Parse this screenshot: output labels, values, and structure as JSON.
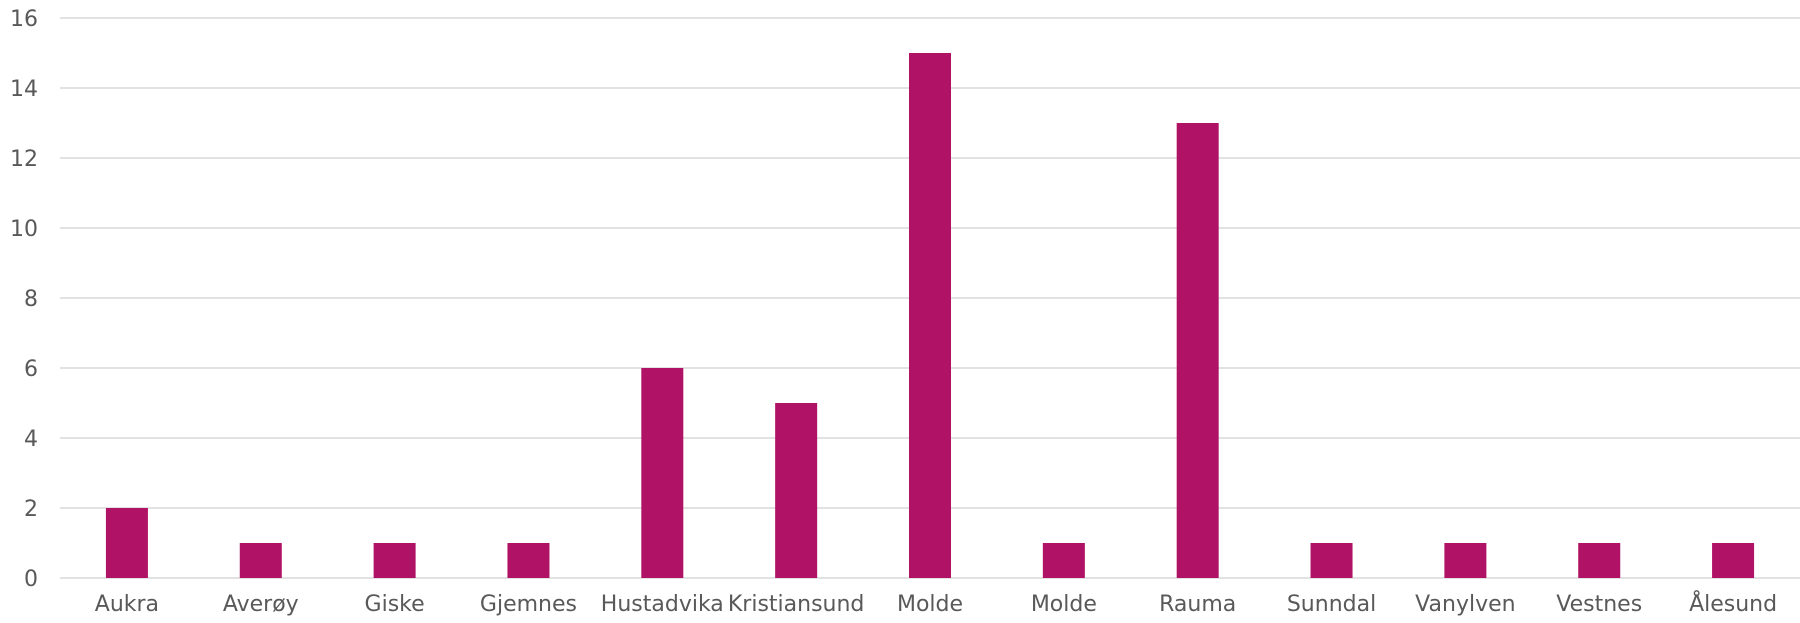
{
  "chart_data": {
    "type": "bar",
    "title": "",
    "xlabel": "",
    "ylabel": "",
    "categories": [
      "Aukra",
      "Averøy",
      "Giske",
      "Gjemnes",
      "Hustadvika",
      "Kristiansund",
      "Molde",
      "Molde",
      "Rauma",
      "Sunndal",
      "Vanylven",
      "Vestnes",
      "Ålesund"
    ],
    "values": [
      2,
      1,
      1,
      1,
      6,
      5,
      15,
      1,
      13,
      1,
      1,
      1,
      1
    ],
    "ylim": [
      0,
      16
    ],
    "yticks": [
      0,
      2,
      4,
      6,
      8,
      10,
      12,
      14,
      16
    ],
    "grid": true,
    "legend": "none",
    "bar_color": "#b01265"
  }
}
